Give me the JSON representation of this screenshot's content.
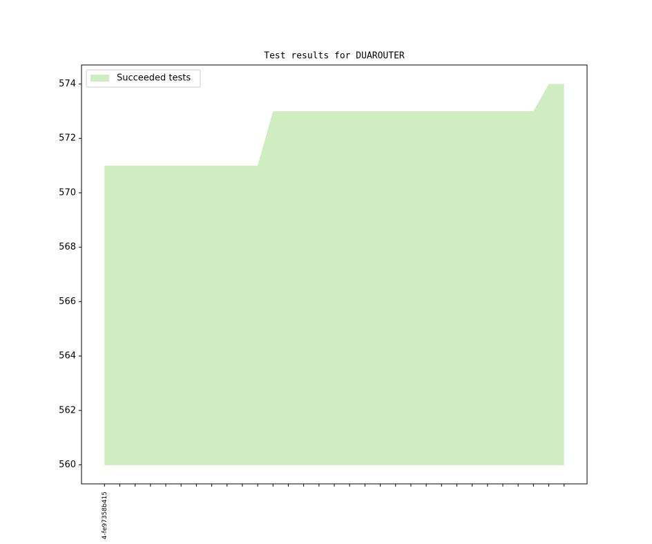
{
  "chart_data": {
    "type": "area",
    "title": "Test results for DUAROUTER",
    "categories": [
      "4-fe97358b415",
      null,
      null,
      null,
      null,
      null,
      null,
      null,
      null,
      null,
      null,
      null,
      null,
      null,
      null,
      null,
      null,
      null,
      null,
      null,
      null,
      null,
      null,
      null,
      null,
      null,
      null,
      null,
      null,
      null,
      null
    ],
    "series": [
      {
        "name": "Succeeded tests",
        "color": "#cfedc0",
        "values": [
          571,
          571,
          571,
          571,
          571,
          571,
          571,
          571,
          571,
          571,
          571,
          573,
          573,
          573,
          573,
          573,
          573,
          573,
          573,
          573,
          573,
          573,
          573,
          573,
          573,
          573,
          573,
          573,
          573,
          574,
          574
        ]
      }
    ],
    "baseline": 560,
    "xlim": [
      -1.5,
      31.5
    ],
    "ylim": [
      559.3,
      574.7
    ],
    "yticks": [
      560,
      562,
      564,
      566,
      568,
      570,
      572,
      574
    ],
    "legend": "upper left"
  }
}
